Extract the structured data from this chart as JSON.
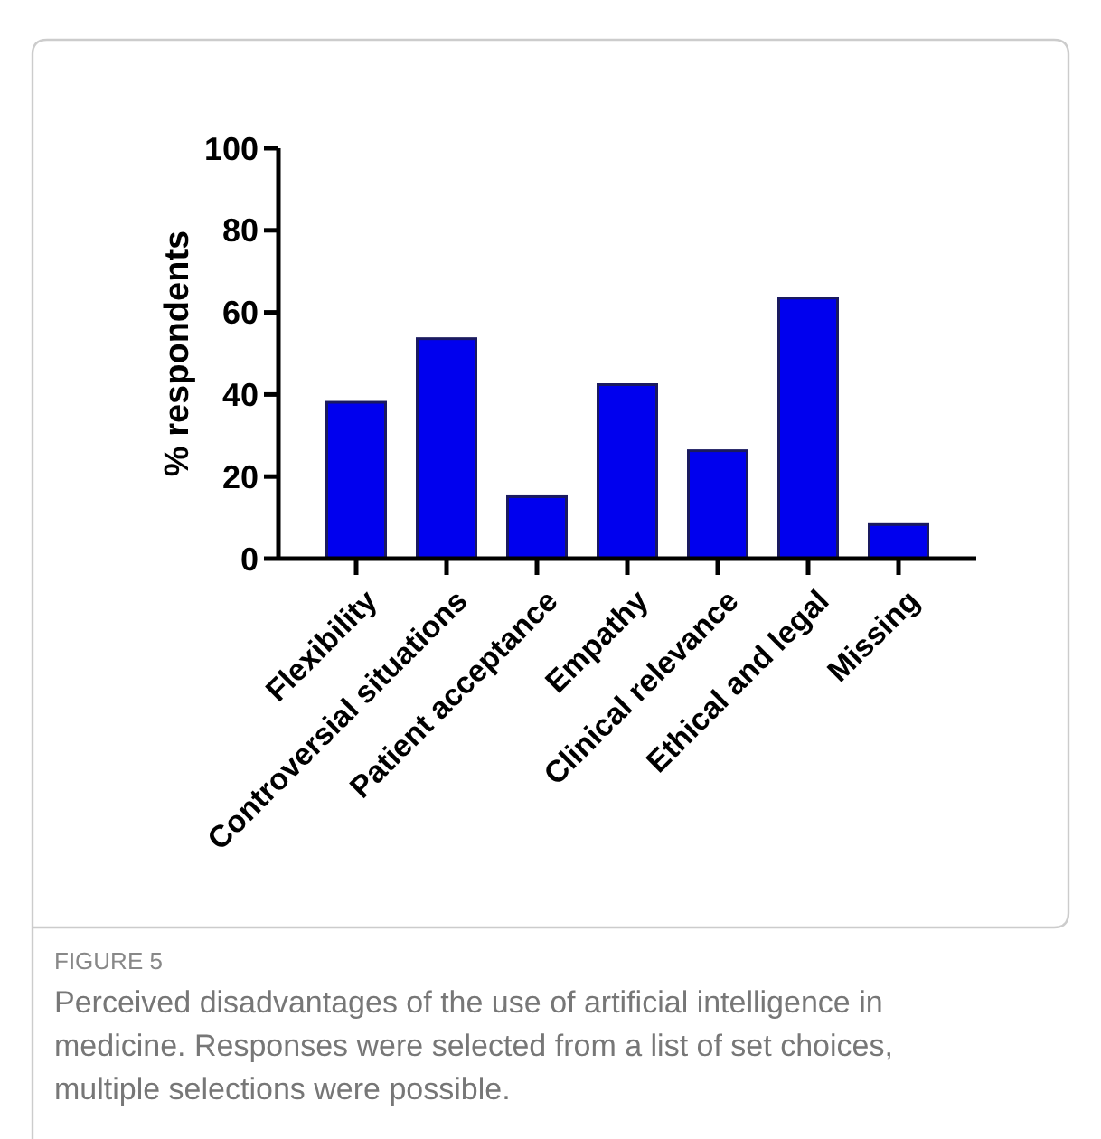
{
  "chart_data": {
    "type": "bar",
    "ylabel": "% respondents",
    "categories": [
      "Flexibility",
      "Controversial situations",
      "Patient acceptance",
      "Empathy",
      "Clinical relevance",
      "Ethical and legal",
      "Missing"
    ],
    "values": [
      38.1,
      53.6,
      15.1,
      42.4,
      26.3,
      63.5,
      8.3
    ],
    "color": "#0000ee",
    "ylim": [
      0,
      100
    ],
    "yticks": [
      0,
      20,
      40,
      60,
      80,
      100
    ],
    "grid": false,
    "annotations": [
      "FIGURE 5",
      "Perceived disadvantages of the use of artificial intelligence in medicine. Responses were selected from a list of set choices, multiple selections were possible."
    ]
  }
}
